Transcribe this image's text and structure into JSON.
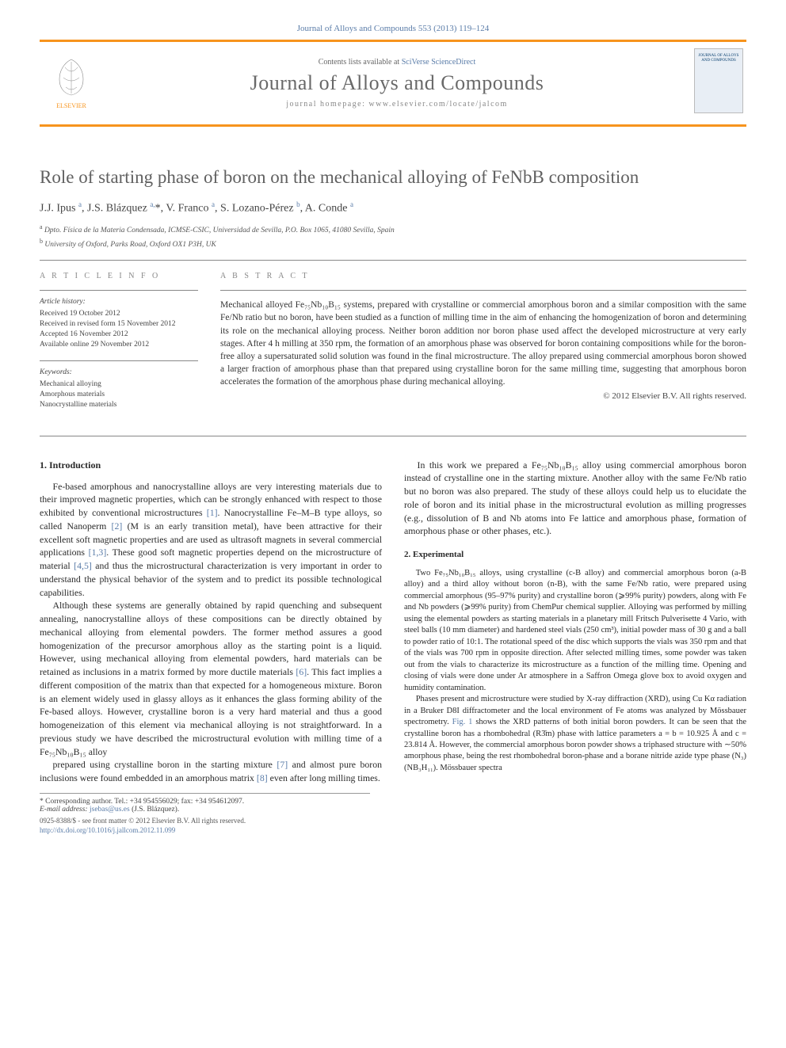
{
  "top_citation": "Journal of Alloys and Compounds 553 (2013) 119–124",
  "header": {
    "contents_prefix": "Contents lists available at ",
    "contents_link": "SciVerse ScienceDirect",
    "journal_name": "Journal of Alloys and Compounds",
    "homepage_prefix": "journal homepage: ",
    "homepage_url": "www.elsevier.com/locate/jalcom",
    "cover_text": "JOURNAL OF ALLOYS AND COMPOUNDS"
  },
  "title": "Role of starting phase of boron on the mechanical alloying of FeNbB composition",
  "authors_html": "J.J. Ipus <sup>a</sup>, J.S. Blázquez <sup>a,</sup><span class='star'>*</span>, V. Franco <sup>a</sup>, S. Lozano-Pérez <sup>b</sup>, A. Conde <sup>a</sup>",
  "affiliations": [
    "a Dpto. Física de la Materia Condensada, ICMSE-CSIC, Universidad de Sevilla, P.O. Box 1065, 41080 Sevilla, Spain",
    "b University of Oxford, Parks Road, Oxford OX1 P3H, UK"
  ],
  "article_info": {
    "head": "A R T I C L E   I N F O",
    "history_head": "Article history:",
    "history": [
      "Received 19 October 2012",
      "Received in revised form 15 November 2012",
      "Accepted 16 November 2012",
      "Available online 29 November 2012"
    ],
    "keywords_head": "Keywords:",
    "keywords": [
      "Mechanical alloying",
      "Amorphous materials",
      "Nanocrystalline materials"
    ]
  },
  "abstract": {
    "head": "A B S T R A C T",
    "text": "Mechanical alloyed Fe₇₅Nb₁₀B₁₅ systems, prepared with crystalline or commercial amorphous boron and a similar composition with the same Fe/Nb ratio but no boron, have been studied as a function of milling time in the aim of enhancing the homogenization of boron and determining its role on the mechanical alloying process. Neither boron addition nor boron phase used affect the developed microstructure at very early stages. After 4 h milling at 350 rpm, the formation of an amorphous phase was observed for boron containing compositions while for the boron-free alloy a supersaturated solid solution was found in the final microstructure. The alloy prepared using commercial amorphous boron showed a larger fraction of amorphous phase than that prepared using crystalline boron for the same milling time, suggesting that amorphous boron accelerates the formation of the amorphous phase during mechanical alloying.",
    "copyright": "© 2012 Elsevier B.V. All rights reserved."
  },
  "sections": {
    "intro_head": "1. Introduction",
    "intro_p1": "Fe-based amorphous and nanocrystalline alloys are very interesting materials due to their improved magnetic properties, which can be strongly enhanced with respect to those exhibited by conventional microstructures [1]. Nanocrystalline Fe–M–B type alloys, so called Nanoperm [2] (M is an early transition metal), have been attractive for their excellent soft magnetic properties and are used as ultrasoft magnets in several commercial applications [1,3]. These good soft magnetic properties depend on the microstructure of material [4,5] and thus the microstructural characterization is very important in order to understand the physical behavior of the system and to predict its possible technological capabilities.",
    "intro_p2": "Although these systems are generally obtained by rapid quenching and subsequent annealing, nanocrystalline alloys of these compositions can be directly obtained by mechanical alloying from elemental powders. The former method assures a good homogenization of the precursor amorphous alloy as the starting point is a liquid. However, using mechanical alloying from elemental powders, hard materials can be retained as inclusions in a matrix formed by more ductile materials [6]. This fact implies a different composition of the matrix than that expected for a homogeneous mixture. Boron is an element widely used in glassy alloys as it enhances the glass forming ability of the Fe-based alloys. However, crystalline boron is a very hard material and thus a good homogeneization of this element via mechanical alloying is not straightforward. In a previous study we have described the microstructural evolution with milling time of a Fe₇₅Nb₁₀B₁₅ alloy",
    "intro_p3": "prepared using crystalline boron in the starting mixture [7] and almost pure boron inclusions were found embedded in an amorphous matrix [8] even after long milling times.",
    "intro_p4": "In this work we prepared a Fe₇₅Nb₁₀B₁₅ alloy using commercial amorphous boron instead of crystalline one in the starting mixture. Another alloy with the same Fe/Nb ratio but no boron was also prepared. The study of these alloys could help us to elucidate the role of boron and its initial phase in the microstructural evolution as milling progresses (e.g., dissolution of B and Nb atoms into Fe lattice and amorphous phase, formation of amorphous phase or other phases, etc.).",
    "exp_head": "2. Experimental",
    "exp_p1": "Two Fe₇₅Nb₁₀B₁₅ alloys, using crystalline (c-B alloy) and commercial amorphous boron (a-B alloy) and a third alloy without boron (n-B), with the same Fe/Nb ratio, were prepared using commercial amorphous (95–97% purity) and crystalline boron (⩾99% purity) powders, along with Fe and Nb powders (⩾99% purity) from ChemPur chemical supplier. Alloying was performed by milling using the elemental powders as starting materials in a planetary mill Fritsch Pulverisette 4 Vario, with steel balls (10 mm diameter) and hardened steel vials (250 cm³), initial powder mass of 30 g and a ball to powder ratio of 10:1. The rotational speed of the disc which supports the vials was 350 rpm and that of the vials was 700 rpm in opposite direction. After selected milling times, some powder was taken out from the vials to characterize its microstructure as a function of the milling time. Opening and closing of vials were done under Ar atmosphere in a Saffron Omega glove box to avoid oxygen and humidity contamination.",
    "exp_p2": "Phases present and microstructure were studied by X-ray diffraction (XRD), using Cu Kα radiation in a Bruker D8I diffractometer and the local environment of Fe atoms was analyzed by Mössbauer spectrometry. Fig. 1 shows the XRD patterns of both initial boron powders. It can be seen that the crystalline boron has a rhombohedral (R3̄m) phase with lattice parameters a = b = 10.925 Å and c = 23.814 Å. However, the commercial amorphous boron powder shows a triphased structure with ∼50% amorphous phase, being the rest rhombohedral boron-phase and a borane nitride azide type phase (N₃)(NB₃H₁₁). Mössbauer spectra"
  },
  "corresp": {
    "line1": "* Corresponding author. Tel.: +34 954556029; fax: +34 954612097.",
    "line2_prefix": "E-mail address: ",
    "email": "jsebas@us.es",
    "line2_suffix": " (J.S. Blázquez)."
  },
  "footer": {
    "left1": "0925-8388/$ - see front matter © 2012 Elsevier B.V. All rights reserved.",
    "left2": "http://dx.doi.org/10.1016/j.jallcom.2012.11.099"
  },
  "colors": {
    "accent_orange": "#f7941d",
    "link_blue": "#5a7ca8",
    "heading_gray": "#606060"
  }
}
